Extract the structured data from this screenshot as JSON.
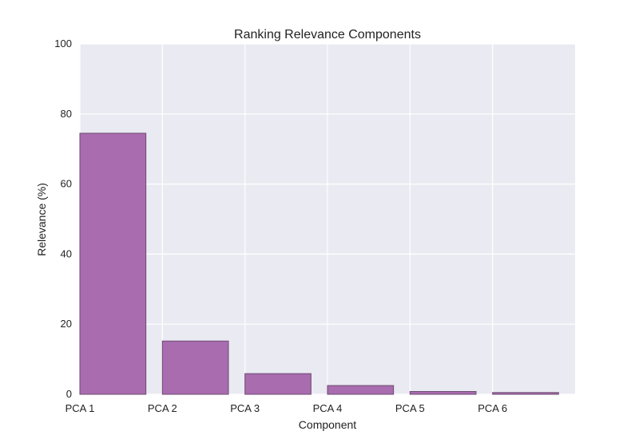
{
  "chart_data": {
    "type": "bar",
    "title": "Ranking Relevance Components",
    "xlabel": "Component",
    "ylabel": "Relevance (%)",
    "categories": [
      "PCA 1",
      "PCA 2",
      "PCA 3",
      "PCA 4",
      "PCA 5",
      "PCA 6"
    ],
    "values": [
      74.5,
      15.2,
      5.9,
      2.5,
      0.8,
      0.5
    ],
    "ylim": [
      0,
      100
    ],
    "yticks": [
      0,
      20,
      40,
      60,
      80,
      100
    ],
    "grid": true,
    "colors": {
      "bar_fill": "#a86caf",
      "bar_edge": "#6e4a72",
      "plot_background": "#eaeaf2",
      "grid": "#ffffff"
    }
  }
}
